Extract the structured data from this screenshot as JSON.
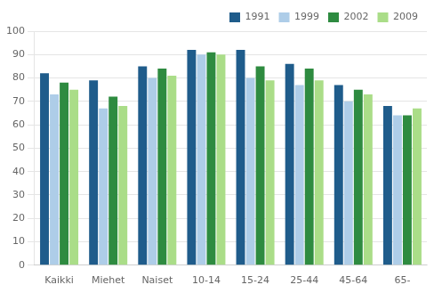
{
  "chart_data": {
    "type": "bar",
    "categories": [
      "Kaikki",
      "Miehet",
      "Naiset",
      "10-14",
      "15-24",
      "25-44",
      "45-64",
      "65-"
    ],
    "series": [
      {
        "name": "1991",
        "color": "#1F5C8B",
        "values": [
          82,
          79,
          85,
          92,
          92,
          86,
          77,
          68
        ]
      },
      {
        "name": "1999",
        "color": "#AECDE8",
        "values": [
          73,
          67,
          80,
          90,
          80,
          77,
          70,
          64
        ]
      },
      {
        "name": "2002",
        "color": "#2E8B40",
        "values": [
          78,
          72,
          84,
          91,
          85,
          84,
          75,
          64
        ]
      },
      {
        "name": "2009",
        "color": "#AADD88",
        "values": [
          75,
          68,
          81,
          90,
          79,
          79,
          73,
          67
        ]
      }
    ],
    "ylim": [
      0,
      100
    ],
    "yticks": [
      0,
      10,
      20,
      30,
      40,
      50,
      60,
      70,
      80,
      90,
      100
    ],
    "grid": true,
    "legend": "upper right"
  }
}
